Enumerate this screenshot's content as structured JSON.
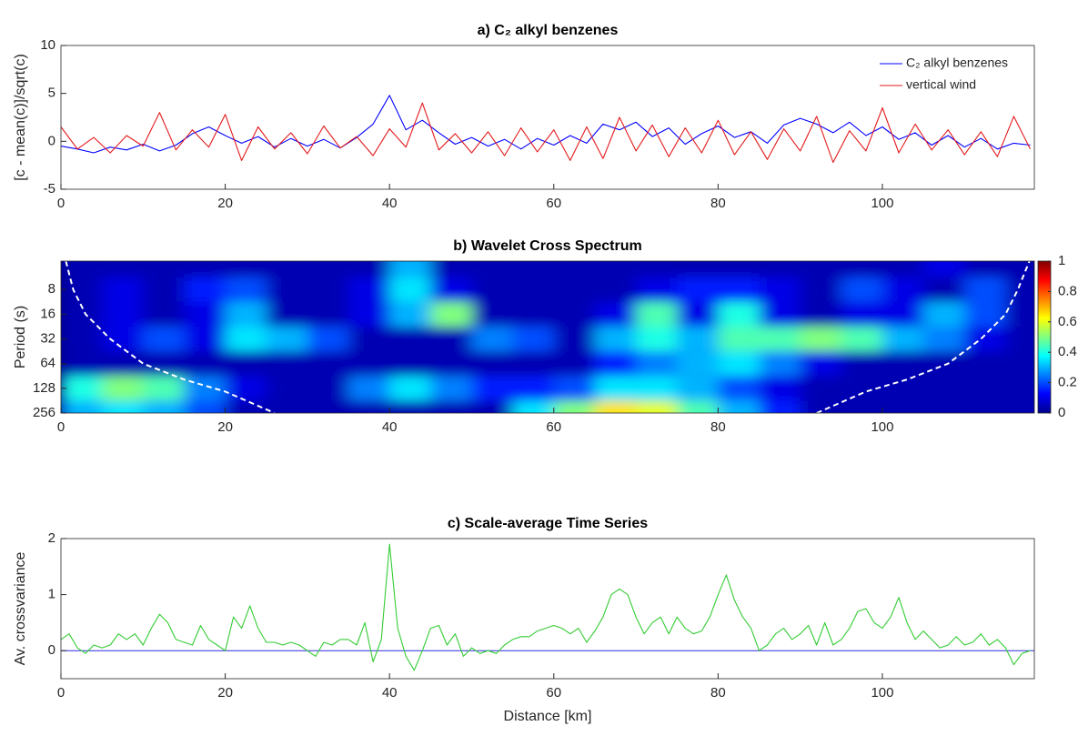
{
  "chart_data": [
    {
      "type": "line",
      "title": "a) C₂ alkyl benzenes",
      "ylabel": "[c - mean(c)]/sqrt(c)",
      "xlim": [
        0,
        118.5
      ],
      "xticks": [
        0,
        20,
        40,
        60,
        80,
        100
      ],
      "ylim": [
        -5,
        10
      ],
      "yticks": [
        -5,
        0,
        5,
        10
      ],
      "legend": "upper right",
      "x": [
        0,
        2,
        4,
        6,
        8,
        10,
        12,
        14,
        16,
        18,
        20,
        22,
        24,
        26,
        28,
        30,
        32,
        34,
        36,
        38,
        40,
        42,
        44,
        46,
        48,
        50,
        52,
        54,
        56,
        58,
        60,
        62,
        64,
        66,
        68,
        70,
        72,
        74,
        76,
        78,
        80,
        82,
        84,
        86,
        88,
        90,
        92,
        94,
        96,
        98,
        100,
        102,
        104,
        106,
        108,
        110,
        112,
        114,
        116,
        118
      ],
      "series": [
        {
          "name": "C₂ alkyl benzenes",
          "color": "#0000ff",
          "values": [
            -0.5,
            -0.8,
            -1.2,
            -0.6,
            -0.9,
            -0.3,
            -1.0,
            -0.4,
            0.8,
            1.5,
            0.6,
            -0.2,
            0.5,
            -0.6,
            0.3,
            -0.5,
            0.2,
            -0.7,
            0.4,
            1.8,
            4.8,
            1.2,
            2.2,
            0.9,
            -0.3,
            0.4,
            -0.5,
            0.2,
            -0.8,
            0.3,
            -0.4,
            0.6,
            -0.2,
            1.8,
            1.2,
            2.0,
            0.5,
            1.4,
            -0.3,
            0.8,
            1.6,
            0.4,
            1.0,
            -0.2,
            1.7,
            2.4,
            1.8,
            0.9,
            2.0,
            0.6,
            1.5,
            0.2,
            0.9,
            -0.4,
            0.6,
            -0.6,
            0.3,
            -0.8,
            -0.2,
            -0.4
          ]
        },
        {
          "name": "vertical wind",
          "color": "#e31a1c",
          "values": [
            1.5,
            -0.8,
            0.4,
            -1.2,
            0.6,
            -0.5,
            3.0,
            -0.9,
            1.2,
            -0.6,
            2.8,
            -2.0,
            1.5,
            -0.8,
            0.9,
            -1.3,
            1.6,
            -0.7,
            0.5,
            -1.5,
            1.3,
            -0.6,
            4.0,
            -0.9,
            0.8,
            -1.2,
            1.0,
            -1.5,
            1.4,
            -1.1,
            1.2,
            -2.0,
            1.5,
            -1.8,
            2.5,
            -1.0,
            1.7,
            -1.6,
            1.4,
            -1.2,
            2.2,
            -1.4,
            1.0,
            -1.9,
            1.3,
            -1.0,
            2.6,
            -2.2,
            1.1,
            -1.0,
            3.5,
            -1.2,
            1.8,
            -0.9,
            1.2,
            -1.4,
            1.0,
            -1.6,
            2.6,
            -0.8
          ]
        }
      ]
    },
    {
      "type": "heatmap",
      "title": "b) Wavelet Cross Spectrum",
      "ylabel": "Period (s)",
      "log_y": true,
      "xlim": [
        0,
        118.5
      ],
      "xticks": [
        0,
        20,
        40,
        60,
        80,
        100
      ],
      "ylim": [
        256,
        3.6
      ],
      "yticks": [
        8,
        16,
        32,
        64,
        128,
        256
      ],
      "clim": [
        0,
        1
      ],
      "cticks": [
        0,
        0.2,
        0.4,
        0.6,
        0.8,
        1
      ],
      "x": [
        2.5,
        7.5,
        12.5,
        17.5,
        22.5,
        27.5,
        32.5,
        37.5,
        42.5,
        47.5,
        52.5,
        57.5,
        62.5,
        67.5,
        72.5,
        77.5,
        82.5,
        87.5,
        92.5,
        97.5,
        102.5,
        107.5,
        112.5,
        117.5
      ],
      "periods": [
        4,
        8,
        16,
        32,
        64,
        128,
        256
      ],
      "z": [
        [
          0.05,
          0.05,
          0.05,
          0.05,
          0.05,
          0.05,
          0.05,
          0.05,
          0.3,
          0.05,
          0.05,
          0.05,
          0.05,
          0.05,
          0.05,
          0.05,
          0.05,
          0.05,
          0.05,
          0.05,
          0.05,
          0.1,
          0.05,
          0.05
        ],
        [
          0.05,
          0.1,
          0.05,
          0.15,
          0.2,
          0.05,
          0.05,
          0.1,
          0.35,
          0.1,
          0.05,
          0.05,
          0.05,
          0.05,
          0.1,
          0.15,
          0.15,
          0.1,
          0.05,
          0.2,
          0.1,
          0.05,
          0.2,
          0.05
        ],
        [
          0.05,
          0.1,
          0.05,
          0.1,
          0.3,
          0.05,
          0.05,
          0.1,
          0.3,
          0.5,
          0.05,
          0.05,
          0.05,
          0.1,
          0.45,
          0.1,
          0.4,
          0.1,
          0.05,
          0.1,
          0.1,
          0.3,
          0.2,
          0.05
        ],
        [
          0.05,
          0.1,
          0.2,
          0.1,
          0.35,
          0.3,
          0.2,
          0.05,
          0.05,
          0.05,
          0.25,
          0.2,
          0.05,
          0.3,
          0.4,
          0.3,
          0.45,
          0.45,
          0.5,
          0.45,
          0.3,
          0.25,
          0.1,
          0.05
        ],
        [
          0.05,
          0.05,
          0.05,
          0.05,
          0.05,
          0.05,
          0.05,
          0.05,
          0.05,
          0.05,
          0.05,
          0.05,
          0.05,
          0.15,
          0.25,
          0.3,
          0.35,
          0.25,
          0.1,
          0.05,
          0.05,
          0.05,
          0.05,
          0.05
        ],
        [
          0.4,
          0.5,
          0.45,
          0.25,
          0.1,
          0.05,
          0.05,
          0.25,
          0.35,
          0.25,
          0.15,
          0.15,
          0.2,
          0.35,
          0.35,
          0.3,
          0.2,
          0.1,
          0.05,
          0.05,
          0.05,
          0.05,
          0.05,
          0.05
        ],
        [
          0.3,
          0.35,
          0.3,
          0.2,
          0.05,
          0.05,
          0.05,
          0.05,
          0.05,
          0.05,
          0.05,
          0.35,
          0.5,
          0.65,
          0.6,
          0.45,
          0.3,
          0.15,
          0.05,
          0.05,
          0.05,
          0.05,
          0.05,
          0.05
        ]
      ],
      "coi": {
        "x": [
          0.6,
          1.5,
          3,
          6,
          10,
          15,
          20,
          26,
          null,
          92,
          98,
          103,
          108,
          112,
          115,
          116.5,
          117.9
        ],
        "period": [
          3.6,
          8,
          16,
          32,
          64,
          100,
          140,
          256,
          null,
          256,
          140,
          100,
          64,
          32,
          16,
          8,
          3.6
        ]
      }
    },
    {
      "type": "line",
      "title": "c) Scale-average Time Series",
      "ylabel": "Av. crossvariance",
      "xlabel": "Distance [km]",
      "xlim": [
        0,
        118.5
      ],
      "xticks": [
        0,
        20,
        40,
        60,
        80,
        100
      ],
      "ylim": [
        -0.5,
        2
      ],
      "yticks": [
        0,
        1,
        2
      ],
      "zero_line_color": "#2b2bd9",
      "x": [
        0,
        1,
        2,
        3,
        4,
        5,
        6,
        7,
        8,
        9,
        10,
        11,
        12,
        13,
        14,
        15,
        16,
        17,
        18,
        19,
        20,
        21,
        22,
        23,
        24,
        25,
        26,
        27,
        28,
        29,
        30,
        31,
        32,
        33,
        34,
        35,
        36,
        37,
        38,
        39,
        40,
        41,
        42,
        43,
        44,
        45,
        46,
        47,
        48,
        49,
        50,
        51,
        52,
        53,
        54,
        55,
        56,
        57,
        58,
        59,
        60,
        61,
        62,
        63,
        64,
        65,
        66,
        67,
        68,
        69,
        70,
        71,
        72,
        73,
        74,
        75,
        76,
        77,
        78,
        79,
        80,
        81,
        82,
        83,
        84,
        85,
        86,
        87,
        88,
        89,
        90,
        91,
        92,
        93,
        94,
        95,
        96,
        97,
        98,
        99,
        100,
        101,
        102,
        103,
        104,
        105,
        106,
        107,
        108,
        109,
        110,
        111,
        112,
        113,
        114,
        115,
        116,
        117,
        118
      ],
      "series": [
        {
          "color": "#33cc33",
          "values": [
            0.2,
            0.3,
            0.05,
            -0.05,
            0.1,
            0.05,
            0.1,
            0.3,
            0.2,
            0.3,
            0.1,
            0.4,
            0.65,
            0.5,
            0.2,
            0.15,
            0.1,
            0.45,
            0.2,
            0.1,
            0.0,
            0.6,
            0.4,
            0.8,
            0.4,
            0.15,
            0.15,
            0.1,
            0.15,
            0.1,
            0.0,
            -0.1,
            0.15,
            0.1,
            0.2,
            0.2,
            0.1,
            0.5,
            -0.2,
            0.2,
            1.9,
            0.4,
            -0.1,
            -0.35,
            0.0,
            0.4,
            0.45,
            0.1,
            0.3,
            -0.1,
            0.05,
            -0.05,
            0.0,
            -0.05,
            0.1,
            0.2,
            0.25,
            0.25,
            0.35,
            0.4,
            0.45,
            0.4,
            0.3,
            0.4,
            0.15,
            0.35,
            0.6,
            1.0,
            1.1,
            1.0,
            0.6,
            0.3,
            0.5,
            0.6,
            0.3,
            0.6,
            0.4,
            0.3,
            0.35,
            0.6,
            1.0,
            1.35,
            0.9,
            0.6,
            0.4,
            0.0,
            0.1,
            0.3,
            0.4,
            0.2,
            0.3,
            0.45,
            0.1,
            0.5,
            0.1,
            0.2,
            0.4,
            0.7,
            0.75,
            0.5,
            0.4,
            0.6,
            0.95,
            0.5,
            0.2,
            0.35,
            0.2,
            0.05,
            0.1,
            0.25,
            0.1,
            0.15,
            0.3,
            0.1,
            0.2,
            0.05,
            -0.25,
            -0.05,
            0.0
          ]
        }
      ]
    }
  ]
}
